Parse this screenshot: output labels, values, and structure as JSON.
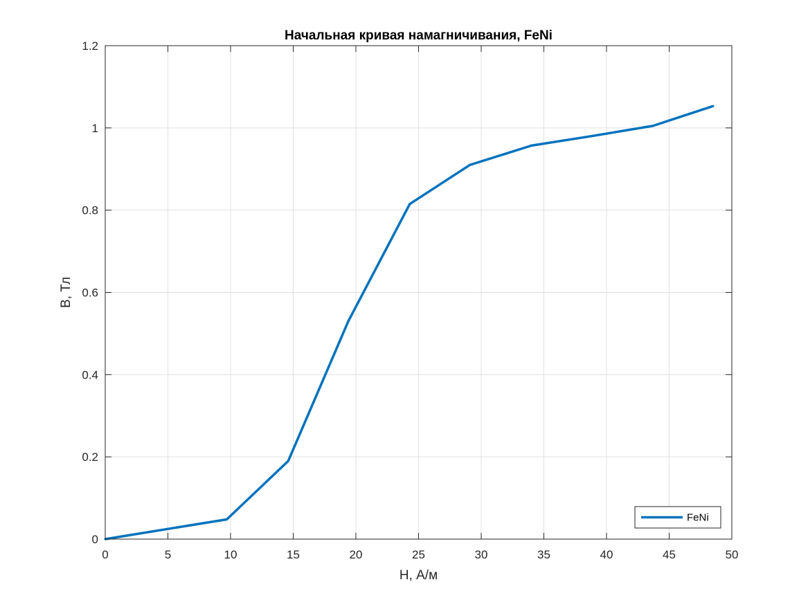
{
  "chart_data": {
    "type": "line",
    "title": "Начальная кривая намагничивания, FeNi",
    "xlabel": "H, А/м",
    "ylabel": "B, Тл",
    "xlim": [
      0,
      50
    ],
    "ylim": [
      0,
      1.2
    ],
    "xticks": [
      0,
      5,
      10,
      15,
      20,
      25,
      30,
      35,
      40,
      45,
      50
    ],
    "yticks": [
      0,
      0.2,
      0.4,
      0.6,
      0.8,
      1.0,
      1.2
    ],
    "xtick_labels": [
      "0",
      "5",
      "10",
      "15",
      "20",
      "25",
      "30",
      "35",
      "40",
      "45",
      "50"
    ],
    "ytick_labels": [
      "0",
      "0.2",
      "0.4",
      "0.6",
      "0.8",
      "1",
      "1.2"
    ],
    "grid": true,
    "legend_position": "bottom-right",
    "series": [
      {
        "name": "FeNi",
        "color": "#0072BD",
        "x": [
          0,
          9.7,
          14.6,
          19.4,
          24.3,
          29.1,
          34.0,
          38.8,
          43.7,
          48.5
        ],
        "y": [
          0,
          0.048,
          0.19,
          0.53,
          0.815,
          0.91,
          0.957,
          0.98,
          1.005,
          1.053
        ]
      }
    ]
  }
}
